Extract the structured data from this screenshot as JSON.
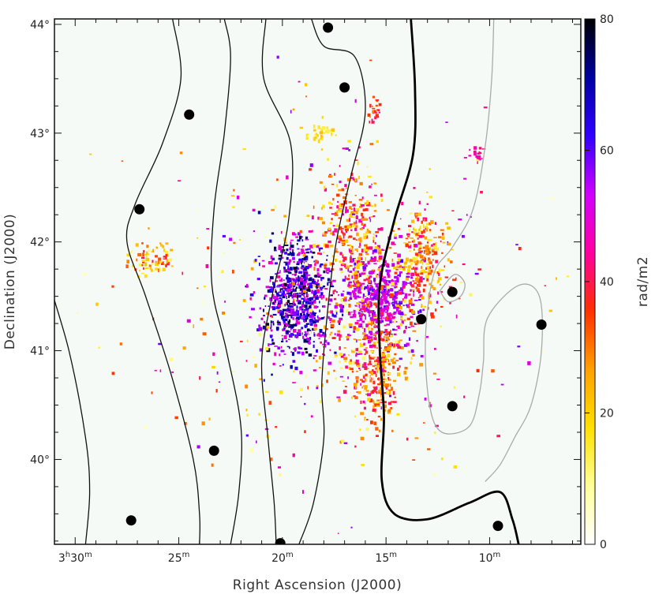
{
  "chart_data": {
    "type": "scatter",
    "xlabel": "Right Ascension (J2000)",
    "ylabel": "Declination (J2000)",
    "x_ticks": [
      {
        "ra_min": 30,
        "h": "3",
        "hs": "h",
        "m": "30",
        "ms": "m"
      },
      {
        "ra_min": 25,
        "h": "",
        "hs": "",
        "m": "25",
        "ms": "m"
      },
      {
        "ra_min": 20,
        "h": "",
        "hs": "",
        "m": "20",
        "ms": "m"
      },
      {
        "ra_min": 15,
        "h": "",
        "hs": "",
        "m": "15",
        "ms": "m"
      },
      {
        "ra_min": 10,
        "h": "",
        "hs": "",
        "m": "10",
        "ms": "m"
      }
    ],
    "y_ticks": [
      {
        "dec": 40,
        "label": "40°"
      },
      {
        "dec": 41,
        "label": "41°"
      },
      {
        "dec": 42,
        "label": "42°"
      },
      {
        "dec": 43,
        "label": "43°"
      },
      {
        "dec": 44,
        "label": "44°"
      }
    ],
    "xlim_ra_min": [
      31.0,
      5.6
    ],
    "ylim_dec": [
      39.22,
      44.05
    ],
    "colorbar": {
      "label": "rad/m2",
      "range": [
        0,
        80
      ],
      "ticks": [
        0,
        20,
        40,
        60,
        80
      ],
      "colors": [
        "#ffffff",
        "#ffff99",
        "#ffe000",
        "#ffa000",
        "#ff3000",
        "#ff00a0",
        "#d000ff",
        "#3000ff",
        "#0000a0",
        "#000000"
      ]
    },
    "sources": [
      {
        "ra_min": 27.3,
        "dec": 39.44
      },
      {
        "ra_min": 26.9,
        "dec": 42.3
      },
      {
        "ra_min": 24.5,
        "dec": 43.17
      },
      {
        "ra_min": 23.3,
        "dec": 40.08
      },
      {
        "ra_min": 20.1,
        "dec": 39.23
      },
      {
        "ra_min": 17.8,
        "dec": 43.97
      },
      {
        "ra_min": 17.0,
        "dec": 43.42
      },
      {
        "ra_min": 13.3,
        "dec": 41.29
      },
      {
        "ra_min": 11.8,
        "dec": 41.54
      },
      {
        "ra_min": 11.8,
        "dec": 40.49
      },
      {
        "ra_min": 9.6,
        "dec": 39.39
      },
      {
        "ra_min": 7.5,
        "dec": 41.24
      }
    ],
    "regions": [
      {
        "ra_min": 19.3,
        "dec": 41.5,
        "sra": 1.3,
        "sdec": 0.45,
        "n": 700,
        "rm": [
          45,
          80
        ]
      },
      {
        "ra_min": 15.3,
        "dec": 41.5,
        "sra": 1.5,
        "sdec": 0.35,
        "n": 450,
        "rm": [
          45,
          62
        ]
      },
      {
        "ra_min": 15.4,
        "dec": 40.8,
        "sra": 0.9,
        "sdec": 0.35,
        "n": 200,
        "rm": [
          24,
          42
        ]
      },
      {
        "ra_min": 16.8,
        "dec": 42.1,
        "sra": 1.4,
        "sdec": 0.5,
        "n": 300,
        "rm": [
          15,
          50
        ]
      },
      {
        "ra_min": 13.3,
        "dec": 41.85,
        "sra": 1.2,
        "sdec": 0.4,
        "n": 280,
        "rm": [
          12,
          45
        ]
      },
      {
        "ra_min": 16.2,
        "dec": 41.1,
        "sra": 2.0,
        "sdec": 0.6,
        "n": 250,
        "rm": [
          10,
          55
        ]
      },
      {
        "ra_min": 26.3,
        "dec": 41.85,
        "sra": 0.8,
        "sdec": 0.12,
        "n": 70,
        "rm": [
          10,
          40
        ]
      },
      {
        "ra_min": 18.2,
        "dec": 43.0,
        "sra": 0.6,
        "sdec": 0.08,
        "n": 40,
        "rm": [
          12,
          22
        ]
      },
      {
        "ra_min": 15.5,
        "dec": 43.2,
        "sra": 0.3,
        "sdec": 0.1,
        "n": 25,
        "rm": [
          30,
          45
        ]
      },
      {
        "ra_min": 10.6,
        "dec": 42.8,
        "sra": 0.3,
        "sdec": 0.06,
        "n": 20,
        "rm": [
          40,
          48
        ]
      },
      {
        "ra_min": 18.0,
        "dec": 41.5,
        "sra": 8.0,
        "sdec": 1.4,
        "n": 320,
        "rm": [
          5,
          60
        ]
      }
    ],
    "contours": [
      {
        "weight": "thin",
        "color": "#111111",
        "points": [
          [
            32.0,
            42.4
          ],
          [
            31.5,
            41.8
          ],
          [
            30.3,
            41.0
          ],
          [
            29.5,
            40.2
          ],
          [
            29.3,
            39.7
          ],
          [
            29.5,
            39.22
          ]
        ]
      },
      {
        "weight": "thin",
        "color": "#111111",
        "points": [
          [
            25.3,
            44.05
          ],
          [
            24.9,
            43.5
          ],
          [
            25.8,
            42.9
          ],
          [
            27.1,
            42.35
          ],
          [
            27.5,
            42.0
          ],
          [
            26.6,
            41.5
          ],
          [
            25.4,
            40.8
          ],
          [
            24.3,
            40.0
          ],
          [
            24.0,
            39.5
          ],
          [
            24.0,
            39.22
          ]
        ]
      },
      {
        "weight": "thin",
        "color": "#111111",
        "points": [
          [
            22.8,
            44.05
          ],
          [
            22.5,
            43.7
          ],
          [
            22.8,
            43.0
          ],
          [
            23.3,
            42.3
          ],
          [
            23.4,
            41.6
          ],
          [
            22.7,
            41.0
          ],
          [
            22.0,
            40.3
          ],
          [
            22.1,
            39.7
          ],
          [
            22.5,
            39.22
          ]
        ]
      },
      {
        "weight": "thin",
        "color": "#111111",
        "points": [
          [
            20.8,
            44.05
          ],
          [
            20.9,
            43.5
          ],
          [
            19.6,
            42.9
          ],
          [
            19.7,
            42.2
          ],
          [
            20.5,
            41.5
          ],
          [
            21.0,
            40.9
          ],
          [
            20.7,
            40.2
          ],
          [
            20.4,
            39.6
          ],
          [
            20.3,
            39.22
          ]
        ]
      },
      {
        "weight": "thin",
        "color": "#111111",
        "points": [
          [
            18.6,
            44.05
          ],
          [
            18.0,
            43.8
          ],
          [
            16.5,
            43.7
          ],
          [
            16.0,
            43.2
          ],
          [
            16.7,
            42.6
          ],
          [
            17.4,
            42.0
          ],
          [
            17.8,
            41.4
          ],
          [
            18.1,
            40.7
          ],
          [
            18.0,
            40.2
          ],
          [
            18.5,
            39.6
          ],
          [
            19.2,
            39.22
          ]
        ]
      },
      {
        "weight": "thick",
        "color": "#000000",
        "points": [
          [
            13.8,
            44.05
          ],
          [
            13.6,
            43.4
          ],
          [
            13.7,
            42.8
          ],
          [
            14.6,
            42.2
          ],
          [
            15.3,
            41.6
          ],
          [
            15.3,
            41.0
          ],
          [
            15.1,
            40.4
          ],
          [
            15.2,
            39.8
          ],
          [
            14.6,
            39.5
          ],
          [
            13.0,
            39.45
          ],
          [
            11.0,
            39.6
          ],
          [
            9.5,
            39.7
          ],
          [
            8.9,
            39.45
          ],
          [
            8.6,
            39.22
          ]
        ]
      },
      {
        "weight": "thin",
        "color": "#aaaaaa",
        "points": [
          [
            9.8,
            44.05
          ],
          [
            9.9,
            43.5
          ],
          [
            10.2,
            42.9
          ],
          [
            10.8,
            42.3
          ],
          [
            11.8,
            41.95
          ],
          [
            12.7,
            41.7
          ],
          [
            13.1,
            41.1
          ],
          [
            12.9,
            40.5
          ],
          [
            12.3,
            40.25
          ],
          [
            11.0,
            40.3
          ],
          [
            10.5,
            40.6
          ],
          [
            10.3,
            40.9
          ],
          [
            10.1,
            41.3
          ],
          [
            8.6,
            41.6
          ],
          [
            7.6,
            41.5
          ],
          [
            7.5,
            41.0
          ],
          [
            8.0,
            40.5
          ],
          [
            8.8,
            40.2
          ],
          [
            9.5,
            39.95
          ],
          [
            10.2,
            39.8
          ]
        ]
      },
      {
        "weight": "thin",
        "color": "#aaaaaa",
        "points": [
          [
            12.4,
            41.55
          ],
          [
            12.0,
            41.45
          ],
          [
            11.4,
            41.5
          ],
          [
            11.2,
            41.62
          ],
          [
            11.7,
            41.7
          ],
          [
            12.4,
            41.55
          ]
        ]
      }
    ]
  }
}
